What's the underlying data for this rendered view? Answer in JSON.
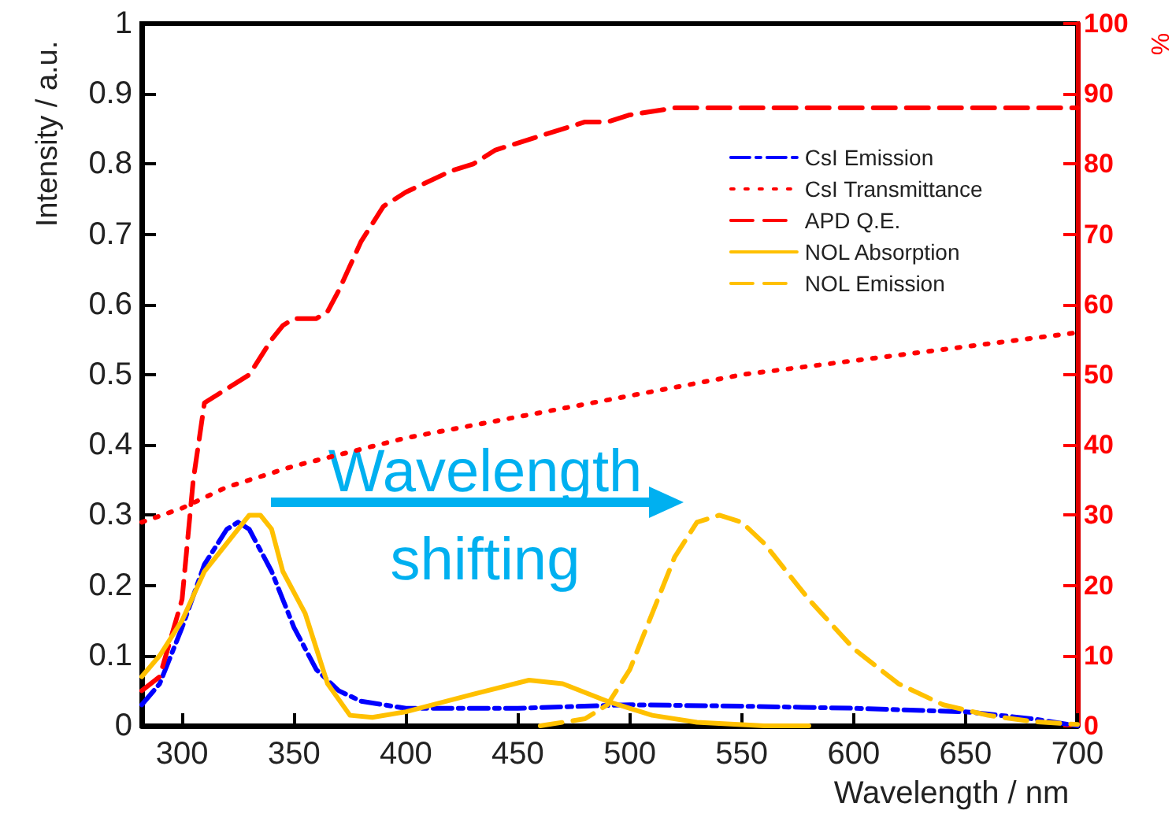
{
  "chart_data": {
    "type": "line",
    "xlabel": "Wavelength / nm",
    "ylabel": "Intensity / a.u.",
    "y2label": "%",
    "xlim": [
      282,
      700
    ],
    "xticks": [
      300,
      350,
      400,
      450,
      500,
      550,
      600,
      650,
      700
    ],
    "ylim": [
      0,
      1
    ],
    "yticks": [
      0,
      0.1,
      0.2,
      0.3,
      0.4,
      0.5,
      0.6,
      0.7,
      0.8,
      0.9,
      1
    ],
    "y2lim": [
      0,
      100
    ],
    "y2ticks": [
      0,
      10,
      20,
      30,
      40,
      50,
      60,
      70,
      80,
      90,
      100
    ],
    "grid": false,
    "legend": "top right",
    "marker": "none",
    "annotations": [
      "Wavelength\nshifting"
    ],
    "series": [
      {
        "name": "CsI Emission",
        "color": "#0000ff",
        "line_style": "dashdot",
        "x": [
          282,
          290,
          300,
          310,
          320,
          325,
          330,
          340,
          350,
          360,
          370,
          380,
          400,
          450,
          500,
          550,
          600,
          650,
          680,
          700
        ],
        "values": [
          0.03,
          0.06,
          0.14,
          0.23,
          0.28,
          0.29,
          0.28,
          0.22,
          0.14,
          0.08,
          0.05,
          0.035,
          0.025,
          0.025,
          0.03,
          0.028,
          0.025,
          0.02,
          0.01,
          0
        ]
      },
      {
        "name": "CsI Transmittance",
        "color": "#ff0000",
        "line_style": "dotted",
        "axis": "y2",
        "x": [
          282,
          300,
          320,
          350,
          400,
          450,
          500,
          550,
          600,
          650,
          700
        ],
        "values": [
          29,
          31,
          34,
          37,
          41,
          44,
          47,
          50,
          52,
          54,
          56
        ]
      },
      {
        "name": "APD Q.E.",
        "color": "#ff0000",
        "line_style": "dashed",
        "axis": "y2",
        "x": [
          282,
          290,
          300,
          305,
          310,
          320,
          330,
          340,
          345,
          350,
          360,
          365,
          370,
          380,
          390,
          400,
          420,
          430,
          440,
          460,
          480,
          490,
          500,
          520,
          700
        ],
        "values": [
          5,
          7,
          18,
          35,
          46,
          48,
          50,
          55,
          57,
          58,
          58,
          59,
          62,
          69,
          74,
          76,
          79,
          80,
          82,
          84,
          86,
          86,
          87,
          88,
          88
        ]
      },
      {
        "name": "NOL Absorption",
        "color": "#ffc000",
        "line_style": "solid",
        "x": [
          282,
          290,
          300,
          310,
          320,
          330,
          335,
          340,
          345,
          355,
          365,
          375,
          385,
          400,
          430,
          455,
          470,
          490,
          510,
          530,
          560,
          580
        ],
        "values": [
          0.07,
          0.1,
          0.15,
          0.22,
          0.26,
          0.3,
          0.3,
          0.28,
          0.22,
          0.16,
          0.06,
          0.015,
          0.012,
          0.02,
          0.045,
          0.065,
          0.06,
          0.035,
          0.015,
          0.005,
          0,
          0
        ]
      },
      {
        "name": "NOL Emission",
        "color": "#ffc000",
        "line_style": "dashed",
        "x": [
          460,
          480,
          490,
          500,
          510,
          520,
          530,
          540,
          550,
          560,
          580,
          600,
          620,
          640,
          660,
          680,
          700
        ],
        "values": [
          0,
          0.01,
          0.03,
          0.08,
          0.16,
          0.24,
          0.29,
          0.3,
          0.29,
          0.26,
          0.18,
          0.11,
          0.06,
          0.03,
          0.015,
          0.006,
          0.002
        ]
      }
    ]
  }
}
